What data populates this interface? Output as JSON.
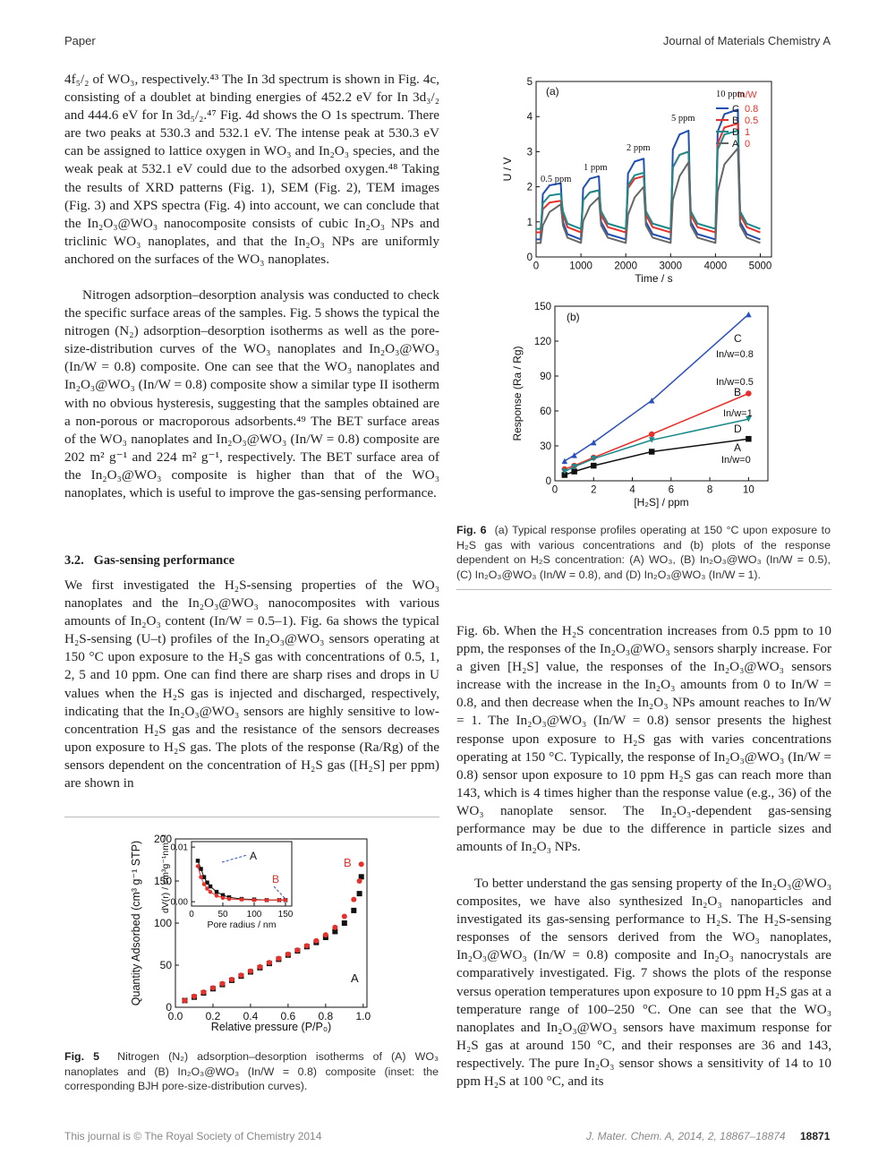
{
  "header": {
    "section": "Paper",
    "journal": "Journal of Materials Chemistry A"
  },
  "body": {
    "left": [
      "4f₅/₂ of WO₃, respectively.⁴³ The In 3d spectrum is shown in Fig. 4c, consisting of a doublet at binding energies of 452.2 eV for In 3d₃/₂ and 444.6 eV for In 3d₅/₂.⁴⁷ Fig. 4d shows the O 1s spectrum. There are two peaks at 530.3 and 532.1 eV. The intense peak at 530.3 eV can be assigned to lattice oxygen in WO₃ and In₂O₃ species, and the weak peak at 532.1 eV could due to the adsorbed oxygen.⁴⁸ Taking the results of XRD patterns (Fig. 1), SEM (Fig. 2), TEM images (Fig. 3) and XPS spectra (Fig. 4) into account, we can conclude that the In₂O₃@WO₃ nanocomposite consists of cubic In₂O₃ NPs and triclinic WO₃ nanoplates, and that the In₂O₃ NPs are uniformly anchored on the surfaces of the WO₃ nanoplates.",
      "Nitrogen adsorption–desorption analysis was conducted to check the specific surface areas of the samples. Fig. 5 shows the typical the nitrogen (N₂) adsorption–desorption isotherms as well as the pore-size-distribution curves of the WO₃ nanoplates and In₂O₃@WO₃ (In/W = 0.8) composite. One can see that the WO₃ nanoplates and In₂O₃@WO₃ (In/W = 0.8) composite show a similar type II isotherm with no obvious hysteresis, suggesting that the samples obtained are a non-porous or macroporous adsorbents.⁴⁹ The BET surface areas of the WO₃ nanoplates and In₂O₃@WO₃ (In/W = 0.8) composite are 202 m² g⁻¹ and 224 m² g⁻¹, respectively. The BET surface area of the In₂O₃@WO₃ composite is higher than that of the WO₃ nanoplates, which is useful to improve the gas-sensing performance."
    ],
    "section": {
      "number": "3.2.",
      "title": "Gas-sensing performance",
      "text": "We first investigated the H₂S-sensing properties of the WO₃ nanoplates and the In₂O₃@WO₃ nanocomposites with various amounts of In₂O₃ content (In/W = 0.5–1). Fig. 6a shows the typical H₂S-sensing (U–t) profiles of the In₂O₃@WO₃ sensors operating at 150 °C upon exposure to the H₂S gas with concentrations of 0.5, 1, 2, 5 and 10 ppm. One can find there are sharp rises and drops in U values when the H₂S gas is injected and discharged, respectively, indicating that the In₂O₃@WO₃ sensors are highly sensitive to low-concentration H₂S gas and the resistance of the sensors decreases upon exposure to H₂S gas. The plots of the response (Ra/Rg) of the sensors dependent on the concentration of H₂S gas ([H₂S] per ppm) are shown in"
    },
    "right": [
      "Fig. 6b. When the H₂S concentration increases from 0.5 ppm to 10 ppm, the responses of the In₂O₃@WO₃ sensors sharply increase. For a given [H₂S] value, the responses of the In₂O₃@WO₃ sensors increase with the increase in the In₂O₃ amounts from 0 to In/W = 0.8, and then decrease when the In₂O₃ NPs amount reaches to In/W = 1. The In₂O₃@WO₃ (In/W = 0.8) sensor presents the highest response upon exposure to H₂S gas with varies concentrations operating at 150 °C. Typically, the response of In₂O₃@WO₃ (In/W = 0.8) sensor upon exposure to 10 ppm H₂S gas can reach more than 143, which is 4 times higher than the response value (e.g., 36) of the WO₃ nanoplate sensor. The In₂O₃-dependent gas-sensing performance may be due to the difference in particle sizes and amounts of In₂O₃ NPs.",
      "To better understand the gas sensing property of the In₂O₃@WO₃ composites, we have also synthesized In₂O₃ nanoparticles and investigated its gas-sensing performance to H₂S. The H₂S-sensing responses of the sensors derived from the WO₃ nanoplates, In₂O₃@WO₃ (In/W = 0.8) composite and In₂O₃ nanocrystals are comparatively investigated. Fig. 7 shows the plots of the response versus operation temperatures upon exposure to 10 ppm H₂S gas at a temperature range of 100–250 °C. One can see that the WO₃ nanoplates and In₂O₃@WO₃ sensors have maximum response for H₂S gas at around 150 °C, and their responses are 36 and 143, respectively. The pure In₂O₃ sensor shows a sensitivity of 14 to 10 ppm H₂S at 100 °C, and its"
    ]
  },
  "captions": {
    "fig6": {
      "label": "Fig. 6",
      "text": "(a) Typical response profiles operating at 150 °C upon exposure to H₂S gas with various concentrations and (b) plots of the response dependent on H₂S concentration: (A) WO₃, (B) In₂O₃@WO₃ (In/W = 0.5), (C) In₂O₃@WO₃ (In/W = 0.8), and (D) In₂O₃@WO₃ (In/W = 1)."
    },
    "fig5": {
      "label": "Fig. 5",
      "text": "Nitrogen (N₂) adsorption–desorption isotherms of (A) WO₃ nanoplates and (B) In₂O₃@WO₃ (In/W = 0.8) composite (inset: the corresponding BJH pore-size-distribution curves)."
    }
  },
  "footer": {
    "left": "This journal is © The Royal Society of Chemistry 2014",
    "citation": "J. Mater. Chem. A, 2014, 2, 18867–18874",
    "page": "18871"
  },
  "chart_data": [
    {
      "type": "scatter",
      "x_label": "Relative pressure (P/P₀)",
      "y_label": "Quantity Adsorbed (cm³ g⁻¹ STP)",
      "x": [
        0.05,
        0.1,
        0.15,
        0.2,
        0.25,
        0.3,
        0.35,
        0.4,
        0.45,
        0.5,
        0.55,
        0.6,
        0.65,
        0.7,
        0.75,
        0.8,
        0.85,
        0.9,
        0.95,
        0.98,
        0.99
      ],
      "xlim": [
        0,
        1.02
      ],
      "xticks": [
        {
          "value": 0,
          "label": "0.0"
        },
        0.2,
        0.4,
        0.6,
        0.8,
        {
          "value": 1,
          "label": "1.0"
        }
      ],
      "ylim": [
        0,
        200
      ],
      "yticks": [
        0,
        50,
        100,
        150,
        200
      ],
      "series": [
        {
          "name": "A",
          "color": "#111111",
          "marker": "square",
          "values": [
            8,
            12,
            17,
            22,
            27,
            32,
            37,
            42,
            47,
            52,
            57,
            62,
            67,
            72,
            77,
            83,
            90,
            100,
            115,
            135,
            155
          ]
        },
        {
          "name": "B",
          "color": "#e8302a",
          "marker": "circle",
          "values": [
            8,
            13,
            18,
            23,
            28,
            33,
            38,
            43,
            48,
            53,
            58,
            63,
            68,
            73,
            79,
            86,
            95,
            108,
            128,
            150,
            170
          ]
        }
      ]
    },
    {
      "type": "line",
      "x_label": "Pore radius / nm",
      "y_label": "dV(r) / cm³g⁻¹nm⁻¹",
      "x": [
        10,
        15,
        20,
        25,
        30,
        40,
        50,
        60,
        80,
        100,
        120,
        140,
        150
      ],
      "xlim": [
        0,
        160
      ],
      "xticks": [
        0,
        50,
        100,
        150
      ],
      "ylim": [
        -0.0008,
        0.011
      ],
      "yticks": [
        {
          "value": 0,
          "label": "0.00"
        },
        {
          "value": 0.01,
          "label": "0.01"
        }
      ],
      "series": [
        {
          "name": "A",
          "color": "#111111",
          "marker": "square",
          "values": [
            0.0075,
            0.006,
            0.0045,
            0.0035,
            0.0028,
            0.0018,
            0.0012,
            0.0008,
            0.0005,
            0.0004,
            0.0003,
            0.0003,
            0.0003
          ]
        },
        {
          "name": "B",
          "color": "#e8302a",
          "marker": "circle",
          "values": [
            0.0065,
            0.0045,
            0.0032,
            0.0024,
            0.0018,
            0.0011,
            0.0007,
            0.0005,
            0.0004,
            0.0003,
            0.0003,
            0.0003,
            0.0003
          ]
        }
      ]
    },
    {
      "type": "line",
      "x_label": "Time / s",
      "y_label": "U / V",
      "annotations": [
        "(a)",
        "0.5 ppm",
        "1 ppm",
        "2 ppm",
        "5 ppm",
        "10 ppm"
      ],
      "legend_title": "In/W",
      "x": [
        0,
        100,
        150,
        300,
        550,
        600,
        700,
        1000,
        1050,
        1200,
        1400,
        1450,
        1600,
        2000,
        2050,
        2200,
        2400,
        2450,
        2600,
        3000,
        3050,
        3200,
        3400,
        3450,
        3600,
        4000,
        4050,
        4200,
        4500,
        4550,
        4700,
        5000
      ],
      "xlim": [
        0,
        5250
      ],
      "xticks": [
        0,
        1000,
        2000,
        3000,
        4000,
        5000
      ],
      "ylim": [
        0,
        5
      ],
      "yticks": [
        0,
        1,
        2,
        3,
        4,
        5
      ],
      "series": [
        {
          "name": "C",
          "label": "0.8",
          "color": "#1f4fb5",
          "values": [
            0.5,
            0.5,
            1.79,
            2.04,
            2.1,
            1.0,
            0.65,
            0.5,
            1.96,
            2.23,
            2.3,
            1.0,
            0.65,
            0.5,
            2.38,
            2.72,
            2.8,
            1.0,
            0.65,
            0.5,
            3.06,
            3.49,
            3.6,
            1.0,
            0.65,
            0.5,
            3.57,
            4.07,
            4.2,
            1.0,
            0.65,
            0.5
          ]
        },
        {
          "name": "B",
          "label": "0.5",
          "color": "#e8302a",
          "values": [
            0.7,
            0.7,
            1.36,
            1.55,
            1.6,
            1.2,
            0.85,
            0.7,
            1.62,
            1.84,
            1.9,
            1.2,
            0.85,
            0.7,
            1.96,
            2.23,
            2.3,
            1.2,
            0.85,
            0.7,
            2.55,
            2.91,
            3.0,
            1.2,
            0.85,
            0.7,
            3.23,
            3.69,
            3.8,
            1.2,
            0.85,
            0.7
          ]
        },
        {
          "name": "D",
          "label": "1",
          "color": "#1a8a8a",
          "values": [
            0.8,
            0.8,
            1.53,
            1.75,
            1.8,
            1.3,
            0.95,
            0.8,
            1.62,
            1.84,
            1.9,
            1.3,
            0.95,
            0.8,
            2.04,
            2.33,
            2.4,
            1.3,
            0.95,
            0.8,
            2.55,
            2.91,
            3.0,
            1.3,
            0.95,
            0.8,
            3.06,
            3.49,
            3.6,
            1.3,
            0.95,
            0.8
          ]
        },
        {
          "name": "A",
          "label": "0",
          "color": "#666666",
          "values": [
            0.4,
            0.4,
            0.9,
            1.28,
            1.5,
            0.9,
            0.55,
            0.4,
            1.02,
            1.45,
            1.7,
            0.9,
            0.55,
            0.4,
            1.2,
            1.7,
            2.0,
            0.9,
            0.55,
            0.4,
            1.62,
            2.3,
            2.7,
            0.9,
            0.55,
            0.4,
            1.86,
            2.64,
            3.1,
            0.9,
            0.55,
            0.4
          ]
        }
      ]
    },
    {
      "type": "line",
      "x_label": "[H₂S] / ppm",
      "y_label": "Response (Ra / Rg)",
      "annotations": [
        "(b)"
      ],
      "x": [
        0.5,
        1,
        2,
        5,
        10
      ],
      "xlim": [
        0,
        11
      ],
      "xticks": [
        0,
        2,
        4,
        6,
        8,
        10
      ],
      "ylim": [
        0,
        150
      ],
      "yticks": [
        0,
        30,
        60,
        90,
        120,
        150
      ],
      "series": [
        {
          "name": "A",
          "label": "In/w=0",
          "color": "#111111",
          "marker": "square",
          "values": [
            5,
            8,
            13,
            25,
            36
          ]
        },
        {
          "name": "B",
          "label": "In/w=0.5",
          "color": "#e8302a",
          "marker": "circle",
          "values": [
            10,
            13,
            20,
            40,
            75
          ]
        },
        {
          "name": "C",
          "label": "In/w=0.8",
          "color": "#2a4fc0",
          "marker": "triangle",
          "values": [
            17,
            22,
            33,
            69,
            143
          ]
        },
        {
          "name": "D",
          "label": "In/w=1",
          "color": "#1a8a8a",
          "marker": "triangle-down",
          "values": [
            8,
            12,
            19,
            35,
            53
          ]
        }
      ]
    }
  ]
}
